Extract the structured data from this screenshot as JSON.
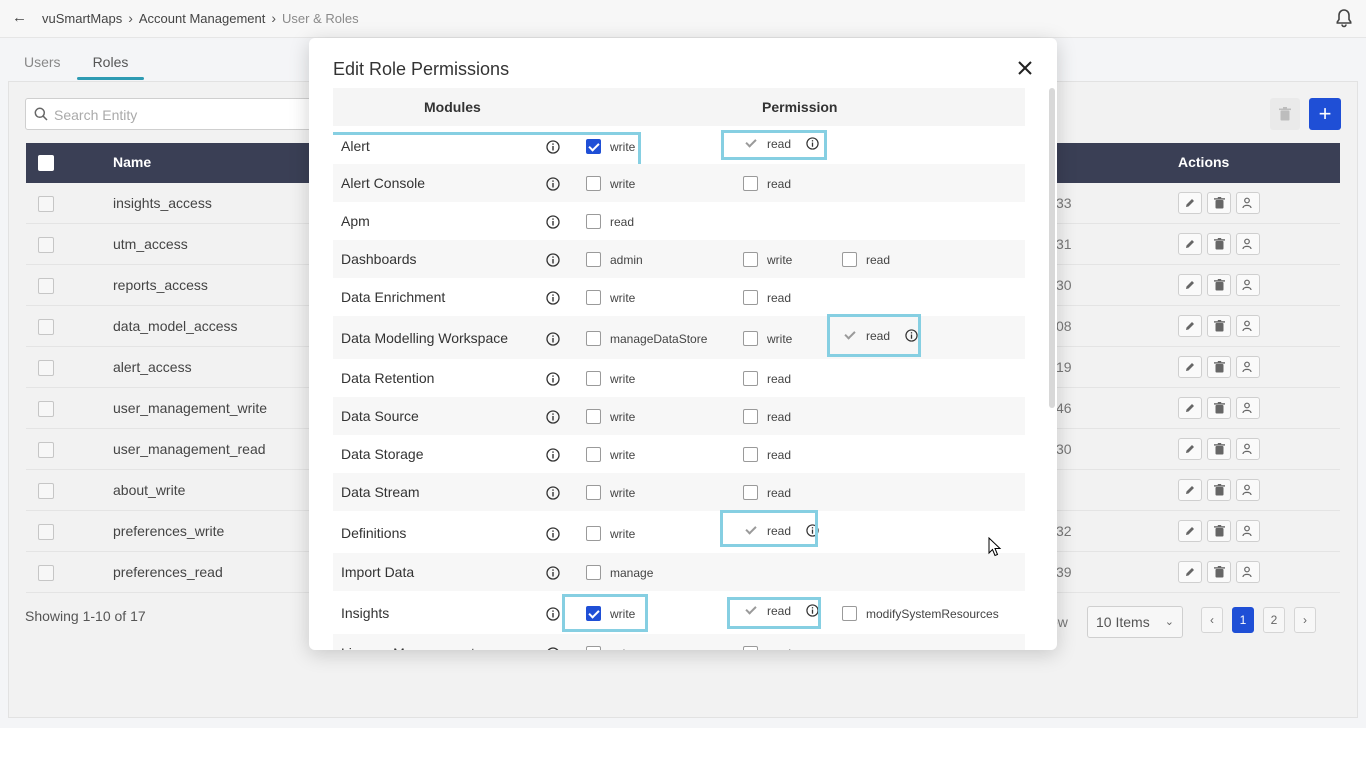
{
  "topbar": {
    "breadcrumb": [
      "vuSmartMaps",
      "Account Management",
      "User & Roles"
    ]
  },
  "tabs": [
    "Users",
    "Roles"
  ],
  "search": {
    "placeholder": "Search Entity"
  },
  "table": {
    "headers": {
      "name": "Name",
      "actions": "Actions"
    },
    "rows": [
      {
        "name": "insights_access",
        "num": "33"
      },
      {
        "name": "utm_access",
        "num": "31"
      },
      {
        "name": "reports_access",
        "num": "30"
      },
      {
        "name": "data_model_access",
        "num": "08"
      },
      {
        "name": "alert_access",
        "num": "19"
      },
      {
        "name": "user_management_write",
        "num": "46"
      },
      {
        "name": "user_management_read",
        "num": "30"
      },
      {
        "name": "about_write",
        "num": ""
      },
      {
        "name": "preferences_write",
        "num": "32"
      },
      {
        "name": "preferences_read",
        "num": "39"
      }
    ]
  },
  "footer": {
    "showing": "Showing 1-10 of 17",
    "per_page_label": "ow",
    "per_page_value": "10 Items",
    "pages": [
      "1",
      "2"
    ]
  },
  "modal": {
    "title": "Edit Role Permissions",
    "col_modules": "Modules",
    "col_permission": "Permission",
    "rows": [
      {
        "label": "Alert",
        "o1": "write",
        "o2": "read"
      },
      {
        "label": "Alert Console",
        "o1": "write",
        "o2": "read"
      },
      {
        "label": "Apm",
        "o1": "read"
      },
      {
        "label": "Dashboards",
        "o1": "admin",
        "o2": "write",
        "o3": "read"
      },
      {
        "label": "Data Enrichment",
        "o1": "write",
        "o2": "read"
      },
      {
        "label": "Data Modelling Workspace",
        "o1": "manageDataStore",
        "o2": "write",
        "o3": "read"
      },
      {
        "label": "Data Retention",
        "o1": "write",
        "o2": "read"
      },
      {
        "label": "Data Source",
        "o1": "write",
        "o2": "read"
      },
      {
        "label": "Data Storage",
        "o1": "write",
        "o2": "read"
      },
      {
        "label": "Data Stream",
        "o1": "write",
        "o2": "read"
      },
      {
        "label": "Definitions",
        "o1": "write",
        "o2": "read"
      },
      {
        "label": "Import Data",
        "o1": "manage"
      },
      {
        "label": "Insights",
        "o1": "write",
        "o2": "read",
        "o3": "modifySystemResources"
      },
      {
        "label": "Licence Management",
        "o1": "write",
        "o2": "read"
      }
    ]
  },
  "colors": {
    "primary": "#1f4fd6",
    "table_header": "#3a3f55",
    "highlight": "#86cfe2",
    "tab_underline": "#2e9bb3"
  }
}
